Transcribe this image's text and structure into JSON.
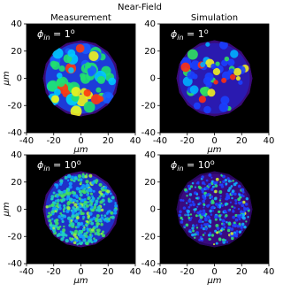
{
  "title": "Near-Field",
  "chart_data": [
    {
      "type": "heatmap",
      "title": "Measurement",
      "annotation": {
        "symbol": "ϕ",
        "sub": "in",
        "rest": " = 1",
        "sup": "o"
      },
      "xlabel": "μm",
      "ylabel": "μm",
      "xlim": [
        -40,
        40
      ],
      "ylim": [
        -40,
        40
      ],
      "xticks": [
        -40,
        -20,
        0,
        20,
        40
      ],
      "yticks": [
        -40,
        -20,
        0,
        20,
        40
      ]
    },
    {
      "type": "heatmap",
      "title": "Simulation",
      "annotation": {
        "symbol": "ϕ",
        "sub": "in",
        "rest": " = 1",
        "sup": "o"
      },
      "xlabel": "μm",
      "xlim": [
        -40,
        40
      ],
      "ylim": [
        -40,
        40
      ],
      "xticks": [
        -40,
        -20,
        0,
        20,
        40
      ],
      "yticks": [
        -40,
        -20,
        0,
        20,
        40
      ]
    },
    {
      "type": "heatmap",
      "annotation": {
        "symbol": "ϕ",
        "sub": "in",
        "rest": " = 10",
        "sup": "o"
      },
      "xlabel": "μm",
      "ylabel": "μm",
      "xlim": [
        -40,
        40
      ],
      "ylim": [
        -40,
        40
      ],
      "xticks": [
        -40,
        -20,
        0,
        20,
        40
      ],
      "yticks": [
        -40,
        -20,
        0,
        20,
        40
      ]
    },
    {
      "type": "heatmap",
      "annotation": {
        "symbol": "ϕ",
        "sub": "in",
        "rest": " = 10",
        "sup": "o"
      },
      "xlabel": "μm",
      "xlim": [
        -40,
        40
      ],
      "ylim": [
        -40,
        40
      ],
      "xticks": [
        -40,
        -20,
        0,
        20,
        40
      ],
      "yticks": [
        -40,
        -20,
        0,
        20,
        40
      ]
    }
  ]
}
